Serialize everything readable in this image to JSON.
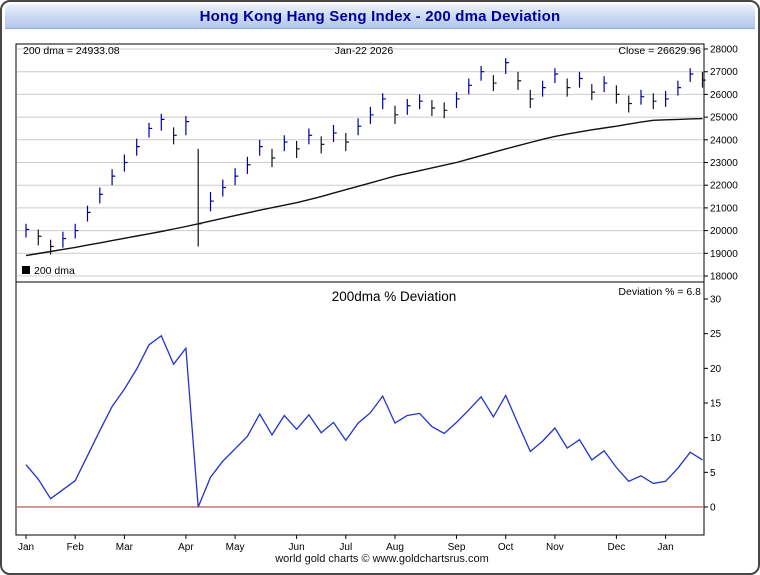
{
  "title_bar": {
    "title": "Hong Kong Hang Seng Index - 200 dma Deviation"
  },
  "top_panel": {
    "dma_label": "200 dma = 24933.08",
    "date_label": "Jan-22 2026",
    "close_label": "Close = 26629.96",
    "legend_label": "200 dma"
  },
  "bottom_panel": {
    "title": "200dma % Deviation",
    "deviation_label": "Deviation % = 6.8"
  },
  "footer": {
    "credit": "world gold charts © www.goldchartsrus.com"
  },
  "colors": {
    "title_text": "#000099",
    "grid": "#cccccc",
    "candle_up": "#0000a0",
    "candle_down": "#15151f",
    "dma_line": "#111111",
    "deviation_line": "#2233cc",
    "zero_line": "#aa3333"
  },
  "chart_data": [
    {
      "type": "bar",
      "subtype": "high-low-close price bars with 200 dma overlay",
      "ylim": [
        18000,
        28000
      ],
      "yticks": [
        18000,
        19000,
        20000,
        21000,
        22000,
        23000,
        24000,
        25000,
        26000,
        27000,
        28000
      ],
      "x_ticks": {
        "labels": [
          "Jan",
          "Feb",
          "Mar",
          "Apr",
          "May",
          "Jun",
          "Jul",
          "Aug",
          "Sep",
          "Oct",
          "Nov",
          "Dec",
          "Jan"
        ],
        "indices": [
          0,
          4,
          8,
          13,
          17,
          22,
          26,
          30,
          35,
          39,
          43,
          48,
          52
        ]
      },
      "current_dma": 24933.08,
      "current_close": 26629.96,
      "date": "Jan-22 2026",
      "legend": "200 dma",
      "series": [
        {
          "name": "high",
          "values": [
            20300,
            20050,
            19600,
            19950,
            20300,
            21100,
            21900,
            22700,
            23350,
            24050,
            24750,
            25150,
            24550,
            25050,
            23600,
            21700,
            22250,
            22750,
            23250,
            24000,
            23600,
            24200,
            23950,
            24500,
            24150,
            24650,
            24300,
            24950,
            25450,
            26050,
            25500,
            25800,
            26000,
            25750,
            25650,
            26100,
            26700,
            27250,
            26850,
            27600,
            27000,
            26200,
            26600,
            27150,
            26700,
            27000,
            26450,
            26800,
            26400,
            25950,
            26200,
            26050,
            26150,
            26600,
            27150,
            27000
          ]
        },
        {
          "name": "low",
          "values": [
            19700,
            19350,
            18950,
            19250,
            19650,
            20400,
            21200,
            22000,
            22600,
            23300,
            24100,
            24400,
            23800,
            24200,
            19300,
            20850,
            21500,
            22000,
            22500,
            23300,
            22800,
            23500,
            23200,
            23800,
            23400,
            23900,
            23500,
            24200,
            24700,
            25350,
            24700,
            25100,
            25350,
            25050,
            24950,
            25400,
            26000,
            26600,
            26150,
            26900,
            26200,
            25400,
            25900,
            26500,
            25900,
            26300,
            25750,
            26100,
            25600,
            25200,
            25550,
            25350,
            25450,
            25950,
            26550,
            26300
          ]
        },
        {
          "name": "close",
          "values": [
            20050,
            19750,
            19300,
            19650,
            20000,
            20800,
            21600,
            22400,
            23000,
            23700,
            24500,
            24900,
            24200,
            24800,
            20300,
            21300,
            21900,
            22400,
            22900,
            23700,
            23200,
            23900,
            23600,
            24200,
            23800,
            24300,
            23900,
            24600,
            25100,
            25800,
            25100,
            25500,
            25700,
            25400,
            25300,
            25800,
            26400,
            27000,
            26500,
            27400,
            26600,
            25800,
            26300,
            26900,
            26300,
            26700,
            26100,
            26500,
            26000,
            25600,
            25900,
            25700,
            25800,
            26300,
            26900,
            26629.96
          ]
        },
        {
          "name": "200 dma",
          "values": [
            18900,
            18990,
            19080,
            19170,
            19260,
            19360,
            19460,
            19560,
            19660,
            19760,
            19860,
            19960,
            20070,
            20180,
            20300,
            20420,
            20540,
            20660,
            20780,
            20900,
            21010,
            21120,
            21230,
            21360,
            21500,
            21650,
            21800,
            21950,
            22100,
            22250,
            22400,
            22520,
            22640,
            22760,
            22880,
            23000,
            23150,
            23300,
            23450,
            23600,
            23740,
            23880,
            24020,
            24150,
            24250,
            24350,
            24440,
            24520,
            24600,
            24690,
            24780,
            24860,
            24880,
            24900,
            24920,
            24933.08
          ]
        }
      ]
    },
    {
      "type": "line",
      "title": "200dma % Deviation",
      "ylim": [
        -4,
        32
      ],
      "yticks": [
        0,
        5,
        10,
        15,
        20,
        25,
        30
      ],
      "zero_line": 0,
      "current_deviation": 6.8,
      "x_ticks": {
        "labels": [
          "Jan",
          "Feb",
          "Mar",
          "Apr",
          "May",
          "Jun",
          "Jul",
          "Aug",
          "Sep",
          "Oct",
          "Nov",
          "Dec",
          "Jan"
        ],
        "indices": [
          0,
          4,
          8,
          13,
          17,
          22,
          26,
          30,
          35,
          39,
          43,
          48,
          52
        ]
      },
      "values": [
        6.1,
        4.0,
        1.2,
        2.5,
        3.8,
        7.4,
        11.0,
        14.5,
        17.0,
        19.9,
        23.4,
        24.7,
        20.6,
        22.9,
        0.0,
        4.3,
        6.6,
        8.4,
        10.2,
        13.4,
        10.4,
        13.2,
        11.2,
        13.3,
        10.7,
        12.2,
        9.6,
        12.1,
        13.6,
        16.0,
        12.1,
        13.2,
        13.5,
        11.6,
        10.6,
        12.2,
        14.0,
        15.9,
        13.0,
        16.1,
        12.0,
        8.0,
        9.5,
        11.4,
        8.5,
        9.7,
        6.8,
        8.1,
        5.7,
        3.7,
        4.5,
        3.4,
        3.7,
        5.6,
        7.9,
        6.8
      ]
    }
  ]
}
